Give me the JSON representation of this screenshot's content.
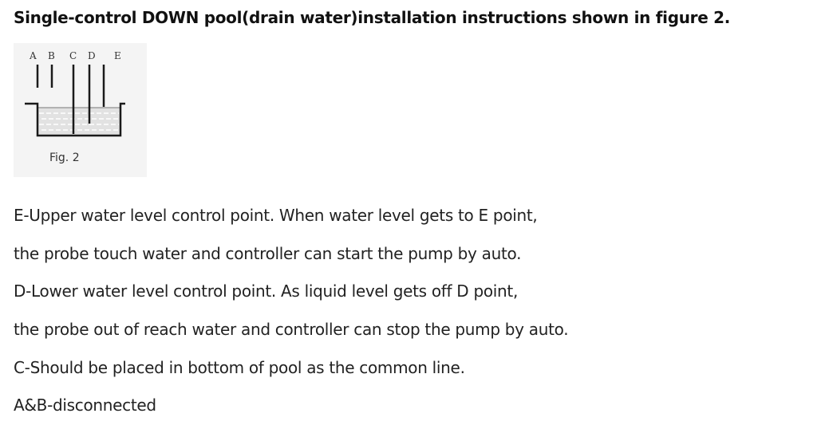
{
  "heading": "Single-control DOWN pool(drain water)installation instructions shown in figure 2.",
  "figure": {
    "probe_labels": [
      "A",
      "B",
      "C",
      "D",
      "E"
    ],
    "caption": "Fig. 2"
  },
  "lines": [
    "E-Upper water level control point. When water level gets to E point,",
    "the probe touch water and controller can start the pump by auto.",
    "D-Lower water level control point. As liquid level gets off D point,",
    "the probe out of reach water and controller can stop the pump by auto.",
    "C-Should be placed in bottom of pool as the common line.",
    "A&B-disconnected"
  ]
}
